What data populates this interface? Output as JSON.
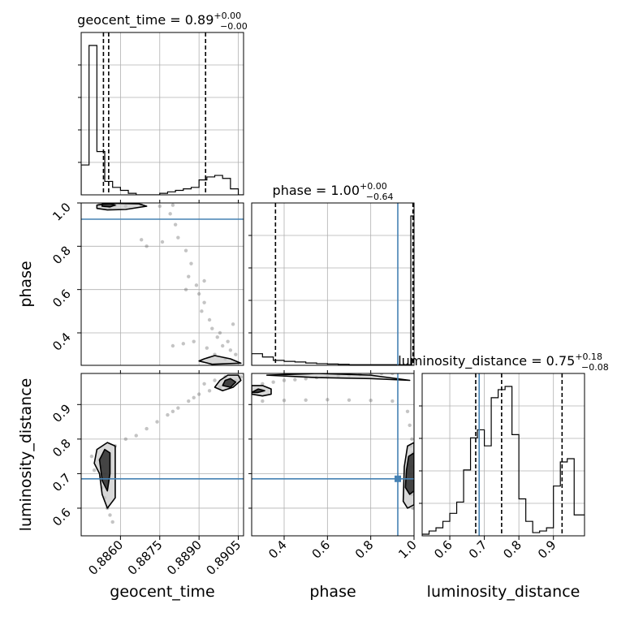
{
  "chart_data": {
    "type": "corner",
    "parameters": [
      {
        "key": "geocent_time",
        "label": "geocent_time",
        "range": [
          0.8845,
          0.8907
        ],
        "ticks": [
          0.886,
          0.8875,
          0.889,
          0.8905
        ],
        "tick_labels": [
          "0.8860",
          "0.8875",
          "0.8890",
          "0.8905"
        ],
        "title": "geocent_time = 0.89",
        "title_sup": "+0.00",
        "title_sub": "−0.00",
        "quantiles": [
          0.88535,
          0.88555,
          0.88925
        ],
        "truth": null
      },
      {
        "key": "phase",
        "label": "phase",
        "range": [
          0.25,
          1.0
        ],
        "ticks": [
          0.4,
          0.6,
          0.8,
          1.0
        ],
        "tick_labels": [
          "0.4",
          "0.6",
          "0.8",
          "1.0"
        ],
        "title": "phase = 1.00",
        "title_sup": "+0.00",
        "title_sub": "−0.64",
        "quantiles": [
          0.36,
          0.995,
          0.999
        ],
        "truth": 0.925
      },
      {
        "key": "luminosity_distance",
        "label": "luminosity_distance",
        "range": [
          0.52,
          0.99
        ],
        "ticks": [
          0.6,
          0.7,
          0.8,
          0.9
        ],
        "tick_labels": [
          "0.6",
          "0.7",
          "0.8",
          "0.9"
        ],
        "title": "luminosity_distance = 0.75",
        "title_sup": "+0.18",
        "title_sub": "−0.08",
        "quantiles": [
          0.675,
          0.75,
          0.925
        ],
        "truth": 0.685
      }
    ],
    "histograms": [
      {
        "param": "geocent_time",
        "edges": [
          0.8845,
          0.8848,
          0.8851,
          0.8854,
          0.8857,
          0.886,
          0.8863,
          0.8866,
          0.8869,
          0.8872,
          0.8875,
          0.8878,
          0.8881,
          0.8884,
          0.8887,
          0.889,
          0.8893,
          0.8896,
          0.8899,
          0.8902,
          0.8905,
          0.8907
        ],
        "counts": [
          0.2,
          1.0,
          0.29,
          0.09,
          0.05,
          0.03,
          0.01,
          0.0,
          0.0,
          0.0,
          0.01,
          0.02,
          0.03,
          0.04,
          0.05,
          0.1,
          0.12,
          0.13,
          0.11,
          0.04,
          0.0
        ]
      },
      {
        "param": "phase",
        "edges": [
          0.25,
          0.3,
          0.35,
          0.4,
          0.45,
          0.5,
          0.55,
          0.6,
          0.65,
          0.7,
          0.75,
          0.8,
          0.85,
          0.9,
          0.95,
          0.985,
          1.0
        ],
        "counts": [
          0.035,
          0.025,
          0.015,
          0.012,
          0.01,
          0.007,
          0.005,
          0.004,
          0.003,
          0.002,
          0.002,
          0.002,
          0.002,
          0.002,
          0.002,
          0.45
        ]
      },
      {
        "param": "luminosity_distance",
        "edges": [
          0.52,
          0.54,
          0.56,
          0.58,
          0.6,
          0.62,
          0.64,
          0.66,
          0.68,
          0.7,
          0.72,
          0.74,
          0.76,
          0.78,
          0.8,
          0.82,
          0.84,
          0.86,
          0.88,
          0.9,
          0.92,
          0.94,
          0.96,
          0.98,
          0.99
        ],
        "counts": [
          0.01,
          0.03,
          0.05,
          0.09,
          0.14,
          0.21,
          0.41,
          0.61,
          0.66,
          0.56,
          0.86,
          0.91,
          0.93,
          0.63,
          0.23,
          0.09,
          0.02,
          0.03,
          0.05,
          0.31,
          0.46,
          0.48,
          0.13,
          0.13
        ]
      }
    ],
    "joint_densities": [
      {
        "x": "geocent_time",
        "y": "phase",
        "samples": [
          [
            0.8853,
            0.99
          ],
          [
            0.8854,
            0.985
          ],
          [
            0.8855,
            0.99
          ],
          [
            0.8856,
            0.98
          ],
          [
            0.8852,
            0.995
          ],
          [
            0.8858,
            0.99
          ],
          [
            0.8862,
            0.985
          ],
          [
            0.8868,
            0.99
          ],
          [
            0.8875,
            0.985
          ],
          [
            0.888,
            0.99
          ],
          [
            0.8879,
            0.95
          ],
          [
            0.8881,
            0.9
          ],
          [
            0.8882,
            0.84
          ],
          [
            0.8876,
            0.82
          ],
          [
            0.8885,
            0.78
          ],
          [
            0.8887,
            0.72
          ],
          [
            0.8886,
            0.66
          ],
          [
            0.8889,
            0.62
          ],
          [
            0.889,
            0.58
          ],
          [
            0.8892,
            0.54
          ],
          [
            0.8891,
            0.5
          ],
          [
            0.8894,
            0.46
          ],
          [
            0.8895,
            0.42
          ],
          [
            0.8897,
            0.38
          ],
          [
            0.8899,
            0.34
          ],
          [
            0.8902,
            0.32
          ],
          [
            0.8904,
            0.3
          ],
          [
            0.89,
            0.28
          ],
          [
            0.8896,
            0.3
          ],
          [
            0.8893,
            0.33
          ],
          [
            0.8888,
            0.36
          ],
          [
            0.8884,
            0.35
          ],
          [
            0.888,
            0.34
          ],
          [
            0.8898,
            0.4
          ],
          [
            0.8901,
            0.36
          ],
          [
            0.8903,
            0.44
          ],
          [
            0.887,
            0.8
          ],
          [
            0.8868,
            0.83
          ],
          [
            0.8885,
            0.6
          ],
          [
            0.8892,
            0.64
          ]
        ],
        "contours": [
          {
            "level": "outer",
            "points": [
              [
                0.8851,
                0.975
              ],
              [
                0.8855,
                0.968
              ],
              [
                0.8862,
                0.97
              ],
              [
                0.887,
                0.985
              ],
              [
                0.8867,
                0.996
              ],
              [
                0.8856,
                0.999
              ],
              [
                0.8851,
                0.99
              ]
            ]
          },
          {
            "level": "inner",
            "points": [
              [
                0.8853,
                0.985
              ],
              [
                0.8856,
                0.982
              ],
              [
                0.8858,
                0.99
              ],
              [
                0.8856,
                0.997
              ],
              [
                0.8853,
                0.995
              ]
            ]
          },
          {
            "level": "outer",
            "points": [
              [
                0.889,
                0.27
              ],
              [
                0.8892,
                0.28
              ],
              [
                0.8896,
                0.295
              ],
              [
                0.8902,
                0.28
              ],
              [
                0.8906,
                0.26
              ],
              [
                0.8895,
                0.255
              ]
            ]
          }
        ]
      },
      {
        "x": "geocent_time",
        "y": "luminosity_distance",
        "samples": [
          [
            0.8852,
            0.74
          ],
          [
            0.8853,
            0.72
          ],
          [
            0.8854,
            0.7
          ],
          [
            0.8855,
            0.68
          ],
          [
            0.8853,
            0.66
          ],
          [
            0.8854,
            0.63
          ],
          [
            0.8855,
            0.6
          ],
          [
            0.8856,
            0.58
          ],
          [
            0.8857,
            0.56
          ],
          [
            0.885,
            0.71
          ],
          [
            0.8849,
            0.75
          ],
          [
            0.8858,
            0.78
          ],
          [
            0.8862,
            0.8
          ],
          [
            0.8866,
            0.81
          ],
          [
            0.887,
            0.83
          ],
          [
            0.8874,
            0.85
          ],
          [
            0.8878,
            0.87
          ],
          [
            0.8882,
            0.89
          ],
          [
            0.8886,
            0.91
          ],
          [
            0.889,
            0.93
          ],
          [
            0.8894,
            0.94
          ],
          [
            0.8898,
            0.95
          ],
          [
            0.8901,
            0.96
          ],
          [
            0.8904,
            0.97
          ],
          [
            0.8906,
            0.98
          ],
          [
            0.89,
            0.98
          ],
          [
            0.8896,
            0.97
          ],
          [
            0.8892,
            0.96
          ],
          [
            0.8888,
            0.92
          ],
          [
            0.888,
            0.88
          ]
        ],
        "contours": [
          {
            "level": "outer",
            "points": [
              [
                0.885,
                0.73
              ],
              [
                0.8852,
                0.7
              ],
              [
                0.8853,
                0.64
              ],
              [
                0.8855,
                0.6
              ],
              [
                0.8858,
                0.63
              ],
              [
                0.8858,
                0.72
              ],
              [
                0.8858,
                0.78
              ],
              [
                0.8855,
                0.79
              ],
              [
                0.8851,
                0.77
              ]
            ]
          },
          {
            "level": "inner",
            "points": [
              [
                0.8852,
                0.74
              ],
              [
                0.8853,
                0.68
              ],
              [
                0.8855,
                0.65
              ],
              [
                0.8856,
                0.7
              ],
              [
                0.8856,
                0.76
              ],
              [
                0.8854,
                0.77
              ]
            ]
          },
          {
            "level": "outer",
            "points": [
              [
                0.8896,
                0.95
              ],
              [
                0.8899,
                0.94
              ],
              [
                0.8903,
                0.95
              ],
              [
                0.8906,
                0.97
              ],
              [
                0.8905,
                0.985
              ],
              [
                0.8901,
                0.985
              ],
              [
                0.8898,
                0.97
              ]
            ]
          },
          {
            "level": "inner",
            "points": [
              [
                0.8899,
                0.955
              ],
              [
                0.8902,
                0.95
              ],
              [
                0.8904,
                0.965
              ],
              [
                0.8902,
                0.975
              ],
              [
                0.89,
                0.97
              ]
            ]
          }
        ]
      },
      {
        "x": "phase",
        "y": "luminosity_distance",
        "samples": [
          [
            0.3,
            0.96
          ],
          [
            0.35,
            0.965
          ],
          [
            0.4,
            0.97
          ],
          [
            0.45,
            0.972
          ],
          [
            0.5,
            0.975
          ],
          [
            0.55,
            0.978
          ],
          [
            0.6,
            0.98
          ],
          [
            0.65,
            0.983
          ],
          [
            0.7,
            0.985
          ],
          [
            0.75,
            0.987
          ],
          [
            0.8,
            0.99
          ],
          [
            0.85,
            0.99
          ],
          [
            0.9,
            0.99
          ],
          [
            0.3,
            0.91
          ],
          [
            0.4,
            0.912
          ],
          [
            0.5,
            0.913
          ],
          [
            0.6,
            0.914
          ],
          [
            0.7,
            0.913
          ],
          [
            0.8,
            0.912
          ],
          [
            0.9,
            0.91
          ],
          [
            0.97,
            0.88
          ],
          [
            0.98,
            0.84
          ],
          [
            0.99,
            0.8
          ],
          [
            0.995,
            0.76
          ],
          [
            0.99,
            0.72
          ],
          [
            0.995,
            0.68
          ],
          [
            0.99,
            0.64
          ],
          [
            0.995,
            0.6
          ],
          [
            0.985,
            0.78
          ],
          [
            0.98,
            0.7
          ]
        ],
        "contours": [
          {
            "level": "outer",
            "points": [
              [
                0.25,
                0.955
              ],
              [
                0.3,
                0.955
              ],
              [
                0.34,
                0.945
              ],
              [
                0.34,
                0.93
              ],
              [
                0.3,
                0.925
              ],
              [
                0.25,
                0.93
              ]
            ]
          },
          {
            "level": "inner",
            "points": [
              [
                0.25,
                0.935
              ],
              [
                0.28,
                0.945
              ],
              [
                0.31,
                0.94
              ],
              [
                0.28,
                0.935
              ]
            ]
          },
          {
            "level": "outer",
            "points": [
              [
                0.95,
                0.62
              ],
              [
                0.97,
                0.6
              ],
              [
                1.0,
                0.61
              ],
              [
                1.0,
                0.79
              ],
              [
                0.97,
                0.78
              ],
              [
                0.955,
                0.72
              ]
            ]
          },
          {
            "level": "inner",
            "points": [
              [
                0.96,
                0.66
              ],
              [
                0.98,
                0.64
              ],
              [
                1.0,
                0.65
              ],
              [
                1.0,
                0.76
              ],
              [
                0.975,
                0.75
              ],
              [
                0.965,
                0.71
              ]
            ]
          },
          {
            "level": "outer",
            "points": [
              [
                0.32,
                0.985
              ],
              [
                0.55,
                0.978
              ],
              [
                0.8,
                0.975
              ],
              [
                0.98,
                0.97
              ],
              [
                0.8,
                0.985
              ],
              [
                0.55,
                0.99
              ]
            ]
          }
        ]
      }
    ]
  }
}
